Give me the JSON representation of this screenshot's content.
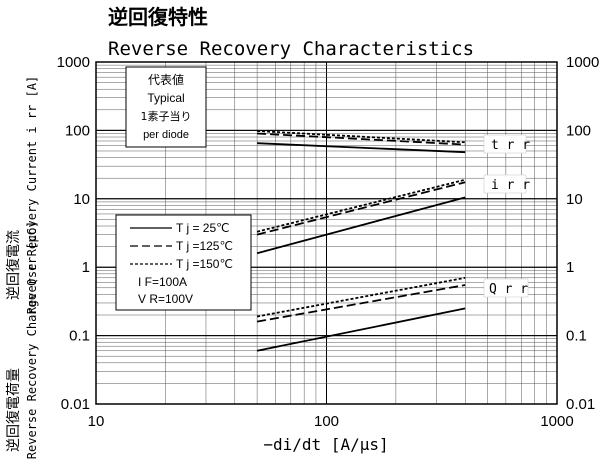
{
  "chart_data": {
    "type": "line",
    "title_jp": "逆回復特性",
    "title": "Reverse Recovery Characteristics",
    "xlabel": "−di/dt [A/μs]",
    "ylabel_left_top": "Reverse Recovery Current   i rr  [A]",
    "ylabel_left_top_jp": "逆回復電流",
    "ylabel_left_bottom": "Reverse Recovery Charge   Q rr  [μC]",
    "ylabel_left_bottom_jp": "逆回復電荷量",
    "x_scale": "log",
    "y_scale": "log",
    "xlim": [
      10,
      1000
    ],
    "ylim": [
      0.01,
      1000
    ],
    "x_ticks": [
      "10",
      "100",
      "1000"
    ],
    "y_ticks": [
      "0.01",
      "0.1",
      "1",
      "10",
      "100",
      "1000"
    ],
    "grid": true,
    "note": {
      "line1": "代表値",
      "line2": "Typical",
      "line3": "1素子当り",
      "line4": "per diode"
    },
    "legend": {
      "entries": [
        "T j =  25℃",
        "T j =125℃",
        "T j =150℃"
      ],
      "cond1": "I F=100A",
      "cond2": "V R=100V"
    },
    "curve_labels": {
      "trr": "t r r",
      "irr": "i r r",
      "qrr": "Q r r"
    },
    "series": [
      {
        "group": "trr",
        "tj": 25,
        "x": [
          50,
          400
        ],
        "y": [
          65,
          48
        ]
      },
      {
        "group": "trr",
        "tj": 125,
        "x": [
          50,
          400
        ],
        "y": [
          90,
          62
        ]
      },
      {
        "group": "trr",
        "tj": 150,
        "x": [
          50,
          400
        ],
        "y": [
          98,
          67
        ]
      },
      {
        "group": "irr",
        "tj": 25,
        "x": [
          50,
          400
        ],
        "y": [
          1.6,
          10.5
        ]
      },
      {
        "group": "irr",
        "tj": 125,
        "x": [
          50,
          400
        ],
        "y": [
          3.0,
          17.5
        ]
      },
      {
        "group": "irr",
        "tj": 150,
        "x": [
          50,
          400
        ],
        "y": [
          3.3,
          19.0
        ]
      },
      {
        "group": "qrr",
        "tj": 25,
        "x": [
          50,
          400
        ],
        "y": [
          0.06,
          0.25
        ]
      },
      {
        "group": "qrr",
        "tj": 125,
        "x": [
          50,
          400
        ],
        "y": [
          0.16,
          0.55
        ]
      },
      {
        "group": "qrr",
        "tj": 150,
        "x": [
          50,
          400
        ],
        "y": [
          0.19,
          0.7
        ]
      }
    ]
  }
}
